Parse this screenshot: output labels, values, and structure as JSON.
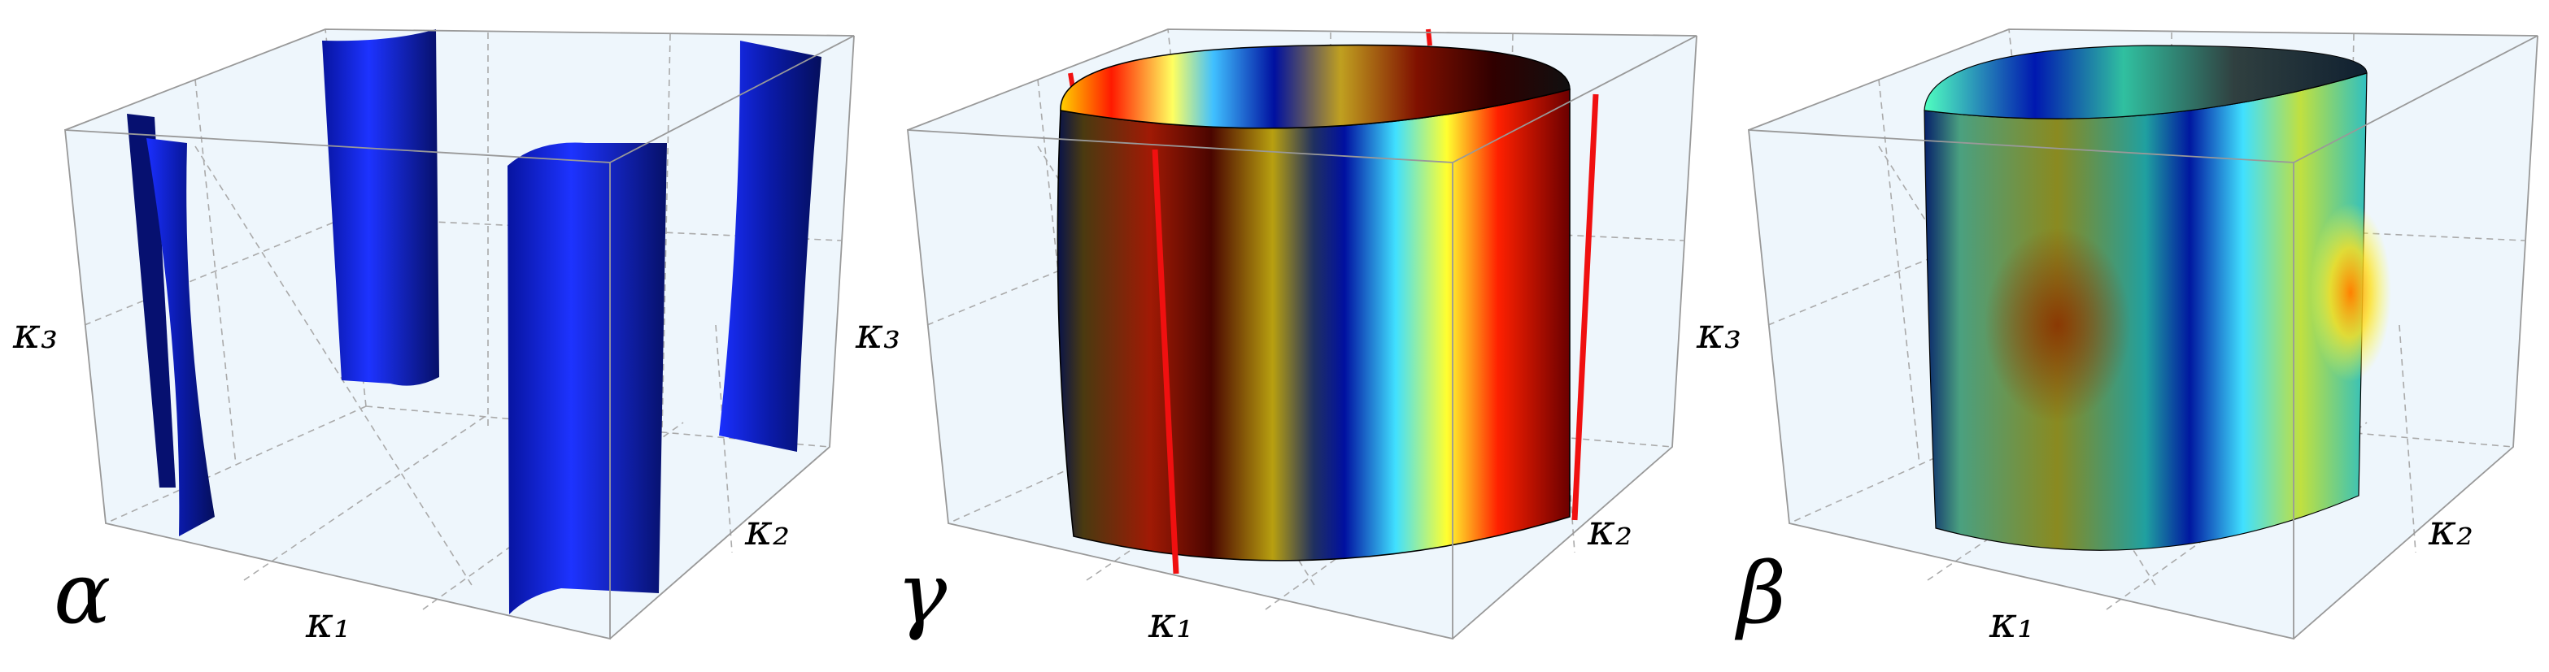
{
  "panels": [
    {
      "label": "α",
      "axes": {
        "x": "κ₁",
        "y": "κ₂",
        "z": "κ₃"
      }
    },
    {
      "label": "γ",
      "axes": {
        "x": "κ₁",
        "y": "κ₂",
        "z": "κ₃"
      }
    },
    {
      "label": "β",
      "axes": {
        "x": "κ₁",
        "y": "κ₂",
        "z": "κ₃"
      }
    }
  ]
}
